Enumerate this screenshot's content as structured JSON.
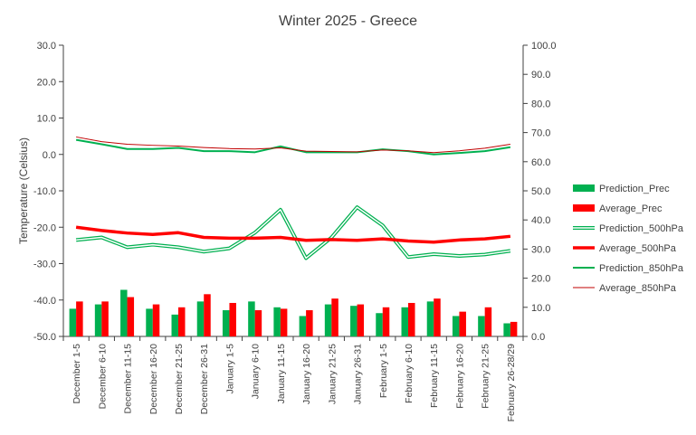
{
  "chart_data": {
    "type": "bar",
    "title": "Winter 2025 - Greece",
    "ylabel": "Temperature (Celsius)",
    "xlabel": "",
    "ylim": [
      -50,
      30
    ],
    "y2lim": [
      0,
      100
    ],
    "yticks": [
      "30.0",
      "20.0",
      "10.0",
      "0.0",
      "-10.0",
      "-20.0",
      "-30.0",
      "-40.0",
      "-50.0"
    ],
    "y2ticks": [
      "100.0",
      "90.0",
      "80.0",
      "70.0",
      "60.0",
      "50.0",
      "40.0",
      "30.0",
      "20.0",
      "10.0",
      "0.0"
    ],
    "grid": false,
    "legend_position": "right",
    "categories": [
      "December 1-5",
      "December 6-10",
      "December 11-15",
      "December 16-20",
      "December 21-25",
      "December 26-31",
      "January 1-5",
      "January 6-10",
      "January 11-15",
      "January 16-20",
      "January 21-25",
      "January 26-31",
      "February 1-5",
      "February 6-10",
      "February 11-15",
      "February 16-20",
      "February 21-25",
      "February 26-28/29"
    ],
    "series": [
      {
        "name": "Prediction_Prec",
        "kind": "bar",
        "axis": "secondary",
        "color": "#00B050",
        "values": [
          9.5,
          11,
          16,
          9.5,
          7.5,
          12,
          9,
          12,
          10,
          7,
          11,
          10.5,
          8,
          10,
          12,
          7,
          7,
          4.5
        ]
      },
      {
        "name": "Average_Prec",
        "kind": "bar",
        "axis": "secondary",
        "color": "#FF0000",
        "values": [
          12,
          12,
          13.5,
          11,
          10,
          14.5,
          11.5,
          9,
          9.5,
          9,
          13,
          11,
          10,
          11.5,
          13,
          8.5,
          10,
          5
        ]
      },
      {
        "name": "Prediction_500hPa",
        "kind": "line-double",
        "axis": "primary",
        "color": "#00B050",
        "values": [
          -23.5,
          -22.8,
          -25.5,
          -24.8,
          -25.5,
          -26.7,
          -25.8,
          -21.5,
          -15.2,
          -28.5,
          -22.8,
          -14.5,
          -19.5,
          -28.2,
          -27.4,
          -27.9,
          -27.5,
          -26.5
        ]
      },
      {
        "name": "Average_500hPa",
        "kind": "line-thick",
        "axis": "primary",
        "color": "#FF0000",
        "values": [
          -20.0,
          -20.9,
          -21.6,
          -22.0,
          -21.5,
          -22.8,
          -23.0,
          -23.0,
          -22.8,
          -23.6,
          -23.4,
          -23.6,
          -23.2,
          -23.8,
          -24.1,
          -23.5,
          -23.2,
          -22.5
        ]
      },
      {
        "name": "Prediction_850hPa",
        "kind": "line",
        "axis": "primary",
        "color": "#00B050",
        "values": [
          4.0,
          2.8,
          1.5,
          1.5,
          1.8,
          0.9,
          0.9,
          0.6,
          2.2,
          0.6,
          0.6,
          0.6,
          1.4,
          0.9,
          0.0,
          0.4,
          0.9,
          2.0
        ]
      },
      {
        "name": "Average_850hPa",
        "kind": "line-thin",
        "axis": "primary",
        "color": "#C00000",
        "values": [
          4.8,
          3.5,
          2.8,
          2.5,
          2.3,
          1.9,
          1.6,
          1.5,
          1.8,
          0.9,
          0.8,
          0.7,
          1.2,
          1.0,
          0.5,
          1.0,
          1.7,
          2.8
        ]
      }
    ]
  }
}
